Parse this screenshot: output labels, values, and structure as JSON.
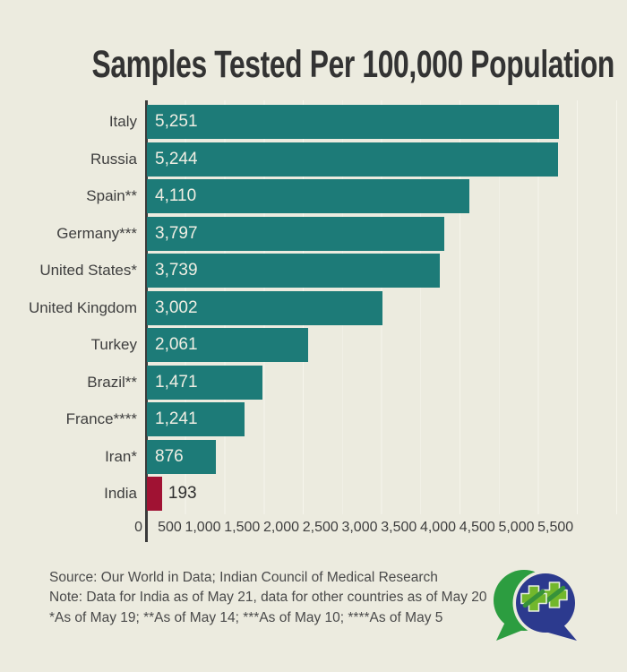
{
  "chart_data": {
    "type": "bar",
    "orientation": "horizontal",
    "title": "Samples Tested Per 100,000 Population",
    "categories": [
      "Italy",
      "Russia",
      "Spain**",
      "Germany***",
      "United States*",
      "United Kingdom",
      "Turkey",
      "Brazil**",
      "France****",
      "Iran*",
      "India"
    ],
    "values": [
      5251,
      5244,
      4110,
      3797,
      3739,
      3002,
      2061,
      1471,
      1241,
      876,
      193
    ],
    "value_labels": [
      "5,251",
      "5,244",
      "4,110",
      "3,797",
      "3,739",
      "3,002",
      "2,061",
      "1,471",
      "1,241",
      "876",
      "193"
    ],
    "highlight_index": 10,
    "xlim": [
      0,
      6000
    ],
    "gridline_step": 500,
    "x_ticks": [
      {
        "value": 0,
        "label": "0"
      },
      {
        "value": 500,
        "label": "500"
      },
      {
        "value": 1000,
        "label": "1,000"
      },
      {
        "value": 1500,
        "label": "1,500"
      },
      {
        "value": 2000,
        "label": "2,000"
      },
      {
        "value": 2500,
        "label": "2,500"
      },
      {
        "value": 3000,
        "label": "3,000"
      },
      {
        "value": 3500,
        "label": "3,500"
      },
      {
        "value": 4000,
        "label": "4,000"
      },
      {
        "value": 4500,
        "label": "4,500"
      },
      {
        "value": 5000,
        "label": "5,000"
      },
      {
        "value": 5500,
        "label": "5,500"
      }
    ],
    "colors": {
      "bar": "#1D7B78",
      "highlight_bar": "#A01233",
      "value_label_inside": "#EFEEE3",
      "value_label_outside": "#2E2E2E",
      "grid": "#F6F5EC",
      "axis": "#3A3A3A",
      "background": "#ECEBDF",
      "text": "#3E3E3E"
    }
  },
  "footer": {
    "source": "Source: Our World in Data; Indian Council of Medical Research",
    "note": "Note: Data for India as of May 21, data for other countries as of May 20",
    "asterisks": "*As of May 19; **As of May 14; ***As of May 10; ****As of May 5"
  },
  "logo": {
    "colors": {
      "green_bubble": "#2C9D40",
      "blue_bubble": "#2C3A8E",
      "plus_green": "#72B72C",
      "leaf_dark": "#37923A"
    }
  }
}
